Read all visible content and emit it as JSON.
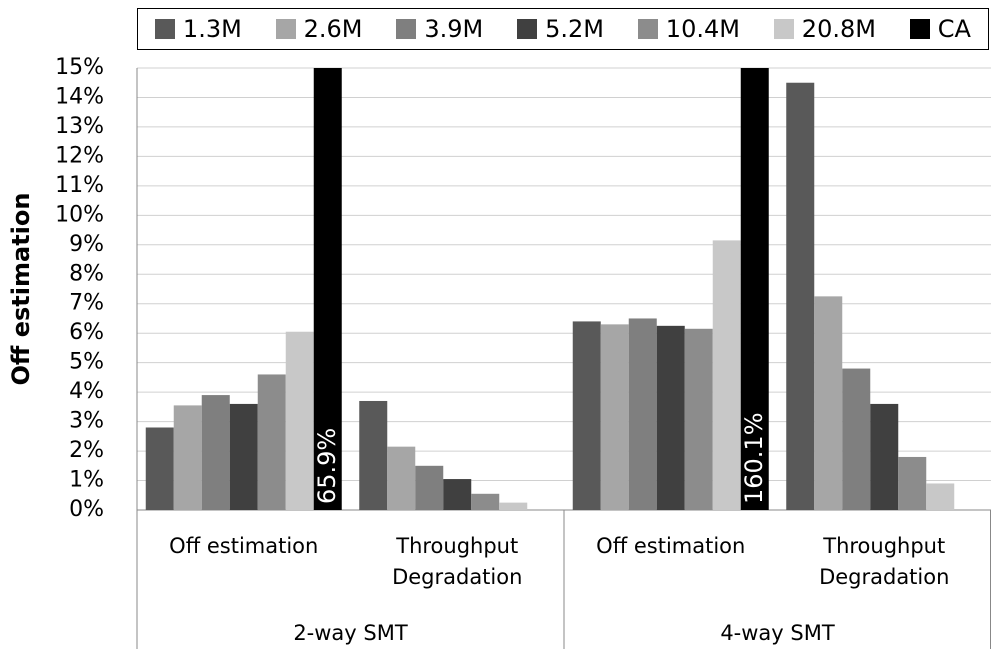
{
  "chart_data": {
    "type": "bar",
    "y_label": "Off estimation",
    "categories": [
      "Off estimation",
      "Throughput Degradation",
      "Off estimation",
      "Throughput Degradation"
    ],
    "groups": [
      "2-way SMT",
      "4-way SMT"
    ],
    "series": [
      {
        "name": "1.3M",
        "color": "#595959",
        "values": [
          2.8,
          3.7,
          6.4,
          14.5
        ]
      },
      {
        "name": "2.6M",
        "color": "#a6a6a6",
        "values": [
          3.55,
          2.15,
          6.3,
          7.25
        ]
      },
      {
        "name": "3.9M",
        "color": "#7f7f7f",
        "values": [
          3.9,
          1.5,
          6.5,
          4.8
        ]
      },
      {
        "name": "5.2M",
        "color": "#404040",
        "values": [
          3.6,
          1.05,
          6.25,
          3.6
        ]
      },
      {
        "name": "10.4M",
        "color": "#8c8c8c",
        "values": [
          4.6,
          0.55,
          6.15,
          1.8
        ]
      },
      {
        "name": "20.8M",
        "color": "#c8c8c8",
        "values": [
          6.05,
          0.25,
          9.15,
          0.9
        ]
      },
      {
        "name": "CA",
        "color": "#000000",
        "values": [
          65.9,
          null,
          160.1,
          null
        ],
        "value_labels": [
          "65.9%",
          null,
          "160.1%",
          null
        ]
      }
    ],
    "ylim": [
      0,
      15
    ],
    "yticks": [
      {
        "value": 0,
        "label": "0%"
      },
      {
        "value": 1,
        "label": "1%"
      },
      {
        "value": 2,
        "label": "2%"
      },
      {
        "value": 3,
        "label": "3%"
      },
      {
        "value": 4,
        "label": "4%"
      },
      {
        "value": 5,
        "label": "5%"
      },
      {
        "value": 6,
        "label": "6%"
      },
      {
        "value": 7,
        "label": "7%"
      },
      {
        "value": 8,
        "label": "8%"
      },
      {
        "value": 9,
        "label": "9%"
      },
      {
        "value": 10,
        "label": "10%"
      },
      {
        "value": 11,
        "label": "11%"
      },
      {
        "value": 12,
        "label": "12%"
      },
      {
        "value": 13,
        "label": "13%"
      },
      {
        "value": 14,
        "label": "14%"
      },
      {
        "value": 15,
        "label": "15%"
      }
    ],
    "grid": true,
    "legend": "top"
  }
}
